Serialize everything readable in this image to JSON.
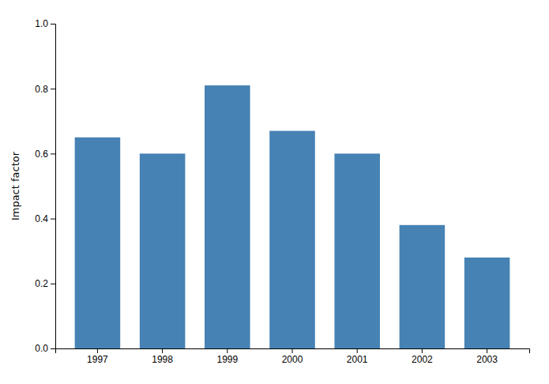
{
  "chart_data": {
    "type": "bar",
    "categories": [
      "1997",
      "1998",
      "1999",
      "2000",
      "2001",
      "2002",
      "2003"
    ],
    "values": [
      0.65,
      0.6,
      0.81,
      0.67,
      0.6,
      0.38,
      0.28
    ],
    "ylabel": "Impact factor",
    "ylim": [
      0.0,
      1.0
    ],
    "yticks": [
      {
        "value": 0.0,
        "label": "0.0"
      },
      0.2,
      0.4,
      0.6,
      0.8,
      {
        "value": 1.0,
        "label": "1.0"
      }
    ]
  }
}
